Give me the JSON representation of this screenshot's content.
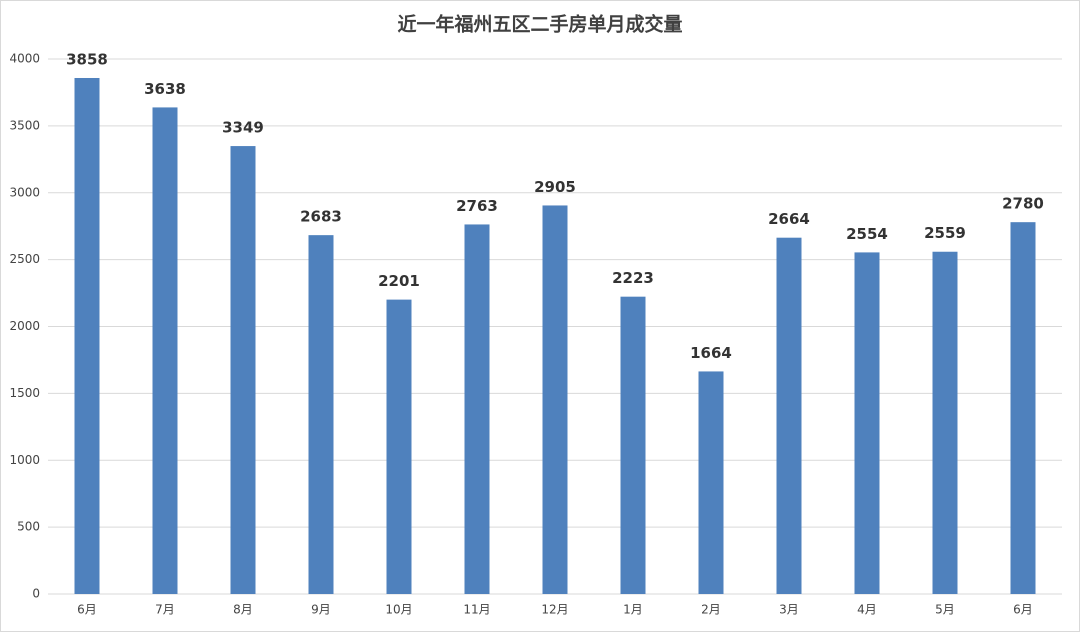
{
  "chart_data": {
    "type": "bar",
    "title": "近一年福州五区二手房单月成交量",
    "categories": [
      "6月",
      "7月",
      "8月",
      "9月",
      "10月",
      "11月",
      "12月",
      "1月",
      "2月",
      "3月",
      "4月",
      "5月",
      "6月"
    ],
    "values": [
      3858,
      3638,
      3349,
      2683,
      2201,
      2763,
      2905,
      2223,
      1664,
      2664,
      2554,
      2559,
      2780
    ],
    "color": "#4f81bd",
    "ylim": [
      0,
      4000
    ],
    "yticks": [
      0,
      500,
      1000,
      1500,
      2000,
      2500,
      3000,
      3500,
      4000
    ],
    "grid": true
  }
}
